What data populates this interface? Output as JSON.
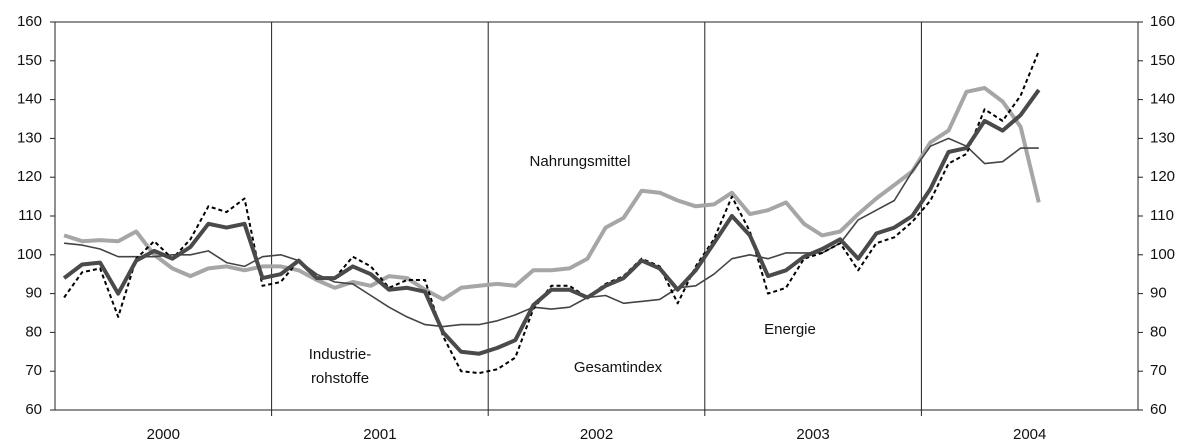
{
  "chart_data": {
    "type": "line",
    "xlim": [
      2000,
      2005
    ],
    "xticks": [
      {
        "value": 2000.5,
        "label": "2000"
      },
      {
        "value": 2001.5,
        "label": "2001"
      },
      {
        "value": 2002.5,
        "label": "2002"
      },
      {
        "value": 2003.5,
        "label": "2003"
      },
      {
        "value": 2004.5,
        "label": "2004"
      }
    ],
    "year_lines": [
      2001,
      2002,
      2003,
      2004
    ],
    "ylim": [
      60,
      160
    ],
    "yticks": [
      60,
      70,
      80,
      90,
      100,
      110,
      120,
      130,
      140,
      150,
      160
    ],
    "y2lim": [
      60,
      160
    ],
    "y2ticks": [
      60,
      70,
      80,
      90,
      100,
      110,
      120,
      130,
      140,
      150,
      160
    ],
    "x": [
      2000.042,
      2000.125,
      2000.208,
      2000.292,
      2000.375,
      2000.458,
      2000.542,
      2000.625,
      2000.708,
      2000.792,
      2000.875,
      2000.958,
      2001.042,
      2001.125,
      2001.208,
      2001.292,
      2001.375,
      2001.458,
      2001.542,
      2001.625,
      2001.708,
      2001.792,
      2001.875,
      2001.958,
      2002.042,
      2002.125,
      2002.208,
      2002.292,
      2002.375,
      2002.458,
      2002.542,
      2002.625,
      2002.708,
      2002.792,
      2002.875,
      2002.958,
      2003.042,
      2003.125,
      2003.208,
      2003.292,
      2003.375,
      2003.458,
      2003.542,
      2003.625,
      2003.708,
      2003.792,
      2003.875,
      2003.958,
      2004.042,
      2004.125,
      2004.208,
      2004.292,
      2004.375,
      2004.458,
      2004.542
    ],
    "series": [
      {
        "label": [
          "Nahrungsmittel"
        ],
        "color": "#a6a6a6",
        "width": 4,
        "dashed": false,
        "values": [
          105,
          103.5,
          103.8,
          103.5,
          106,
          100,
          96.5,
          94.5,
          96.5,
          97,
          96,
          97,
          97,
          96,
          93.5,
          91.5,
          93,
          92,
          94.5,
          94,
          91,
          88.5,
          91.5,
          92,
          92.5,
          92,
          96,
          96,
          96.5,
          99,
          107,
          109.5,
          116.5,
          116,
          114,
          112.5,
          113,
          116,
          110.5,
          111.5,
          113.5,
          108,
          105,
          106,
          110.5,
          114.5,
          118,
          121.5,
          129,
          132,
          142,
          143,
          139.5,
          133,
          113.5
        ]
      },
      {
        "label": [
          "Industrie-",
          "rohstoffe"
        ],
        "color": "#444444",
        "width": 1.6,
        "dashed": false,
        "values": [
          103,
          102.5,
          101.5,
          99.5,
          99.5,
          99.5,
          100,
          100,
          101,
          98,
          97,
          99.5,
          100,
          98.5,
          95,
          93,
          92.5,
          89.5,
          86.5,
          84,
          82,
          81.5,
          82,
          82,
          83,
          84.5,
          86.5,
          86,
          86.5,
          89,
          89.5,
          87.5,
          88,
          88.5,
          91.5,
          92,
          95,
          99,
          100,
          99,
          100.5,
          100.5,
          100.5,
          103,
          109,
          111.5,
          114,
          121.5,
          128,
          130,
          128,
          123.5,
          124,
          127.5,
          127.5
        ]
      },
      {
        "label": [
          "Energie"
        ],
        "color": "#000000",
        "width": 2,
        "dashed": true,
        "values": [
          89,
          95.5,
          96.5,
          84,
          99,
          103.5,
          99,
          104,
          112.5,
          111,
          114.5,
          92,
          93,
          98.5,
          94,
          94,
          99.5,
          97,
          91.5,
          93.5,
          93.5,
          79,
          70,
          69.5,
          70.5,
          73.5,
          86,
          92,
          92,
          89,
          92.5,
          94.5,
          99,
          97,
          87.5,
          97,
          104,
          115,
          106,
          90,
          91.5,
          99,
          100.5,
          103,
          96,
          103,
          104.5,
          108.5,
          114,
          123.5,
          126,
          137.5,
          134.5,
          141,
          152.5
        ]
      },
      {
        "label": [
          "Gesamtindex"
        ],
        "color": "#4a4a4a",
        "width": 4,
        "dashed": false,
        "values": [
          94,
          97.5,
          98,
          90,
          98.5,
          101,
          99,
          102,
          108,
          107,
          108,
          94,
          95,
          98.5,
          94,
          94,
          97,
          95,
          91,
          91.5,
          90.5,
          80,
          75,
          74.5,
          76,
          78,
          87,
          91,
          91,
          89,
          92,
          94,
          98.5,
          96.5,
          91,
          96,
          103,
          110,
          105,
          94.5,
          96,
          99.5,
          101.5,
          104,
          99,
          105.5,
          107,
          110,
          117,
          126.5,
          127.5,
          134.5,
          132,
          136,
          142.5
        ]
      }
    ]
  }
}
